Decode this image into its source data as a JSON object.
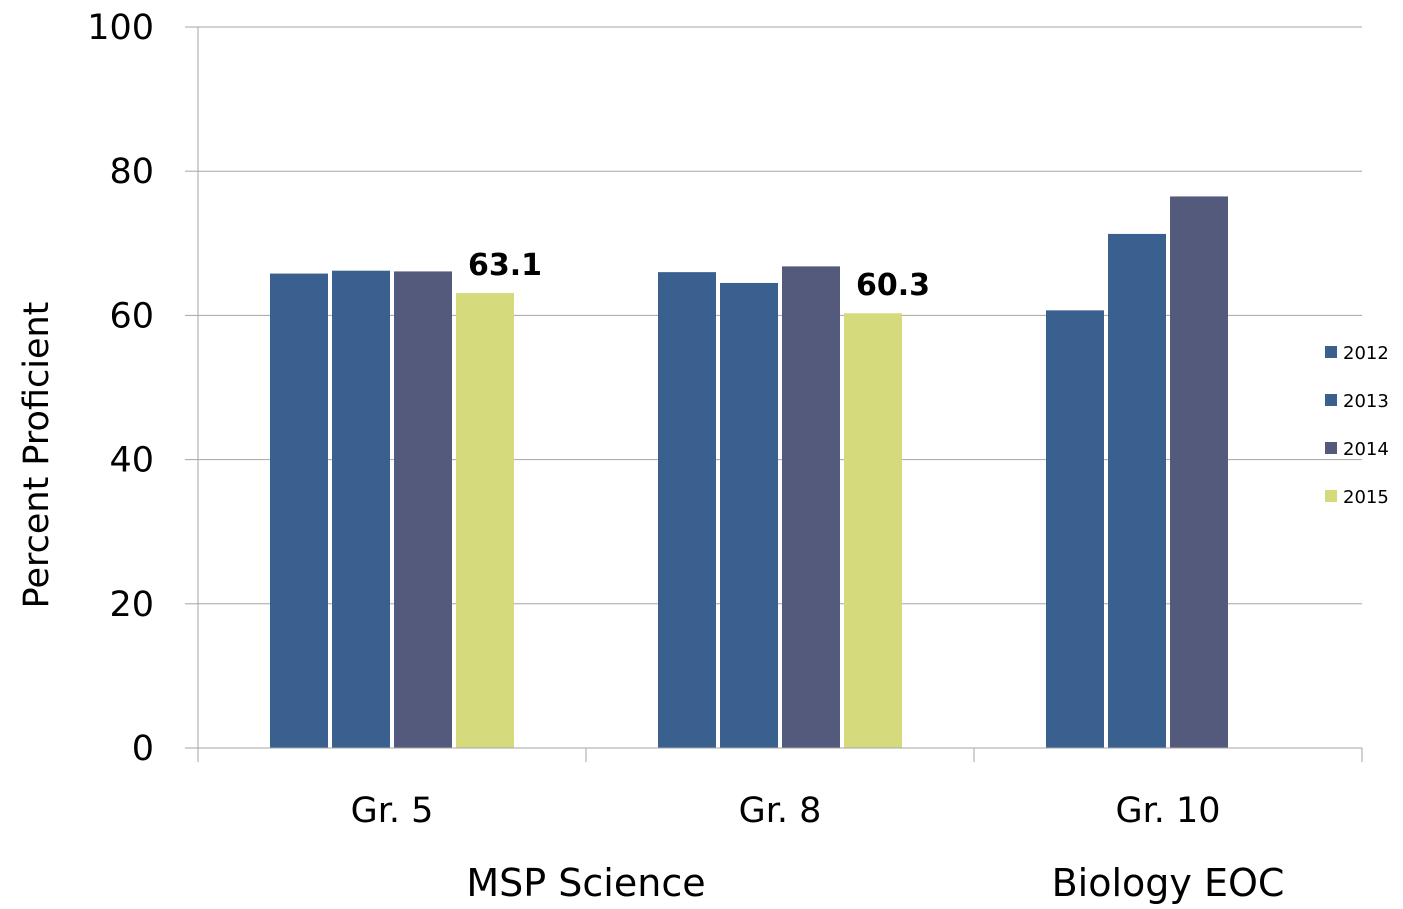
{
  "chart_data": {
    "type": "bar",
    "categories": [
      "Gr. 5",
      "Gr. 8",
      "Gr. 10"
    ],
    "category_groups": [
      {
        "label": "MSP Science",
        "categories": [
          "Gr. 5",
          "Gr. 8"
        ]
      },
      {
        "label": "Biology EOC",
        "categories": [
          "Gr. 10"
        ]
      }
    ],
    "series": [
      {
        "name": "2012",
        "color": "#3A6090",
        "values": [
          65.8,
          66.0,
          60.7
        ]
      },
      {
        "name": "2013",
        "color": "#3A6090",
        "values": [
          66.2,
          64.5,
          71.3
        ]
      },
      {
        "name": "2014",
        "color": "#545A7C",
        "values": [
          66.1,
          66.8,
          76.5
        ]
      },
      {
        "name": "2015",
        "color": "#D5DB7C",
        "values": [
          63.1,
          60.3,
          null
        ]
      }
    ],
    "data_labels": [
      {
        "series": "2015",
        "category": "Gr. 5",
        "text": "63.1"
      },
      {
        "series": "2015",
        "category": "Gr. 8",
        "text": "60.3"
      }
    ],
    "title": "",
    "xlabel": "",
    "ylabel": "Percent Proficient",
    "ylim": [
      0,
      100
    ],
    "yticks": [
      "0",
      "20",
      "40",
      "60",
      "80",
      "100"
    ],
    "grid": true,
    "legend_position": "right"
  }
}
